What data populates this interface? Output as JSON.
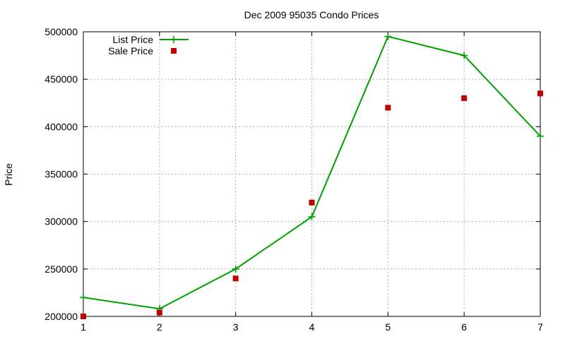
{
  "chart_data": {
    "type": "line",
    "title": "Dec 2009 95035 Condo Prices",
    "xlabel": "",
    "ylabel": "Price",
    "x": [
      1,
      2,
      3,
      4,
      5,
      6,
      7
    ],
    "xlim": [
      1,
      7
    ],
    "ylim": [
      200000,
      500000
    ],
    "xticks": [
      1,
      2,
      3,
      4,
      5,
      6,
      7
    ],
    "yticks": [
      200000,
      250000,
      300000,
      350000,
      400000,
      450000,
      500000
    ],
    "grid": true,
    "legend_position": "top-left",
    "series": [
      {
        "name": "List Price",
        "style": "line-with-plus-markers",
        "color": "#00a000",
        "values": [
          220000,
          208000,
          250000,
          305000,
          495000,
          475000,
          390000
        ]
      },
      {
        "name": "Sale Price",
        "style": "square-markers",
        "color": "#c00000",
        "values": [
          200000,
          204000,
          240000,
          320000,
          420000,
          430000,
          435000
        ]
      }
    ]
  }
}
